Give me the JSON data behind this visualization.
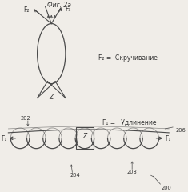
{
  "bg_color": "#f0ede8",
  "line_color": "#4a4a4a",
  "text_color": "#333333",
  "title": "Фиг. 2а",
  "label_200": "200",
  "label_204": "204",
  "label_208": "208",
  "label_206": "206",
  "label_202": "202",
  "label_z1": "Z",
  "label_z2": "Z",
  "label_f1": "F₁",
  "label_f1r": "F₁",
  "label_f2": "F₂",
  "label_f3": "F₃",
  "text_f1": "F₁ =   Удлинение",
  "text_f2": "F₂ =  Скручивание",
  "fs_small": 5.5,
  "fs_tiny": 4.8
}
